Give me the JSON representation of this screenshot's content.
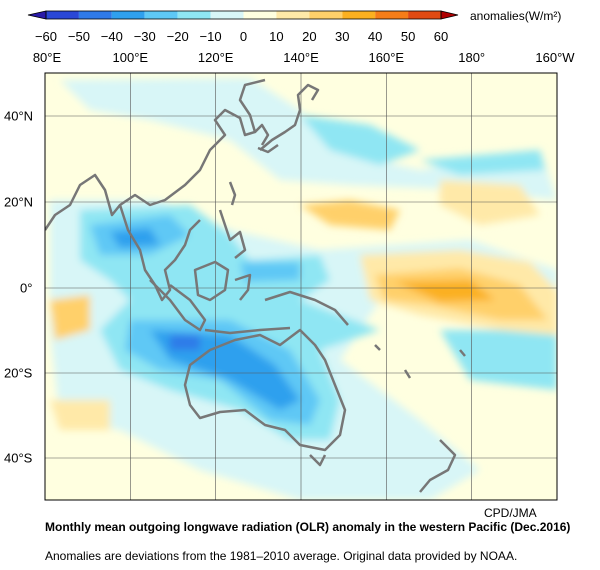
{
  "colorbar": {
    "units_label": "anomalies(W/m²)",
    "ticks": [
      "−60",
      "−50",
      "−40",
      "−30",
      "−20",
      "−10",
      "0",
      "10",
      "20",
      "30",
      "40",
      "50",
      "60"
    ],
    "bins": [
      {
        "from": -60,
        "to": -50,
        "color": "#2a47d6"
      },
      {
        "from": -50,
        "to": -40,
        "color": "#2f7ae8"
      },
      {
        "from": -40,
        "to": -30,
        "color": "#2fa0ee"
      },
      {
        "from": -30,
        "to": -20,
        "color": "#5ec8f5"
      },
      {
        "from": -20,
        "to": -10,
        "color": "#8fe6f3"
      },
      {
        "from": -10,
        "to": 0,
        "color": "#d8f6f7"
      },
      {
        "from": 0,
        "to": 10,
        "color": "#ffffe0"
      },
      {
        "from": 10,
        "to": 20,
        "color": "#ffe9a8"
      },
      {
        "from": 20,
        "to": 30,
        "color": "#ffd06a"
      },
      {
        "from": 30,
        "to": 40,
        "color": "#fbb020"
      },
      {
        "from": 40,
        "to": 50,
        "color": "#f57d18"
      },
      {
        "from": 50,
        "to": 60,
        "color": "#e04a12"
      }
    ]
  },
  "map": {
    "lon_labels": [
      "80°E",
      "100°E",
      "120°E",
      "140°E",
      "160°E",
      "180°",
      "160°W"
    ],
    "lat_labels": [
      "40°N",
      "20°N",
      "0°",
      "20°S",
      "40°S"
    ],
    "credit": "CPD/JMA"
  },
  "caption": {
    "title": "Monthly mean outgoing longwave radiation (OLR) anomaly in the western Pacific (Dec.2016)",
    "note": "Anomalies are deviations from the 1981–2010 average. Original data provided by NOAA."
  }
}
